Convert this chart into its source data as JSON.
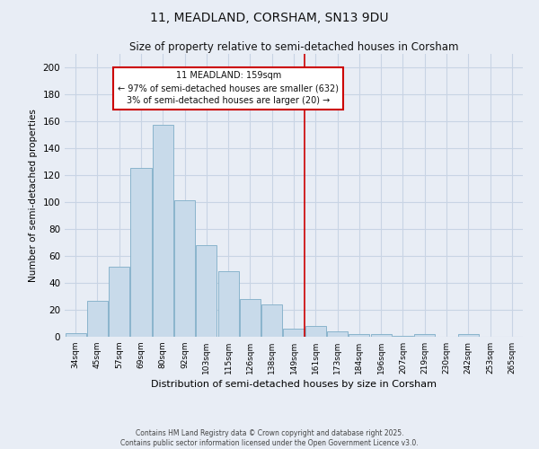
{
  "title": "11, MEADLAND, CORSHAM, SN13 9DU",
  "subtitle": "Size of property relative to semi-detached houses in Corsham",
  "xlabel": "Distribution of semi-detached houses by size in Corsham",
  "ylabel": "Number of semi-detached properties",
  "bar_labels": [
    "34sqm",
    "45sqm",
    "57sqm",
    "69sqm",
    "80sqm",
    "92sqm",
    "103sqm",
    "115sqm",
    "126sqm",
    "138sqm",
    "149sqm",
    "161sqm",
    "173sqm",
    "184sqm",
    "196sqm",
    "207sqm",
    "219sqm",
    "230sqm",
    "242sqm",
    "253sqm",
    "265sqm"
  ],
  "bar_values": [
    3,
    27,
    52,
    125,
    157,
    101,
    68,
    49,
    28,
    24,
    6,
    8,
    4,
    2,
    2,
    1,
    2,
    0,
    2,
    0,
    0
  ],
  "bar_color": "#c8daea",
  "bar_edge_color": "#8ab4cc",
  "annotation_line_x_label": "161sqm",
  "annotation_line_color": "#cc0000",
  "annotation_box_text": "11 MEADLAND: 159sqm\n← 97% of semi-detached houses are smaller (632)\n3% of semi-detached houses are larger (20) →",
  "annotation_box_color": "#cc0000",
  "annotation_box_fill": "#ffffff",
  "ylim": [
    0,
    210
  ],
  "yticks": [
    0,
    20,
    40,
    60,
    80,
    100,
    120,
    140,
    160,
    180,
    200
  ],
  "grid_color": "#c8d4e4",
  "background_color": "#e8edf5",
  "footer_line1": "Contains HM Land Registry data © Crown copyright and database right 2025.",
  "footer_line2": "Contains public sector information licensed under the Open Government Licence v3.0."
}
